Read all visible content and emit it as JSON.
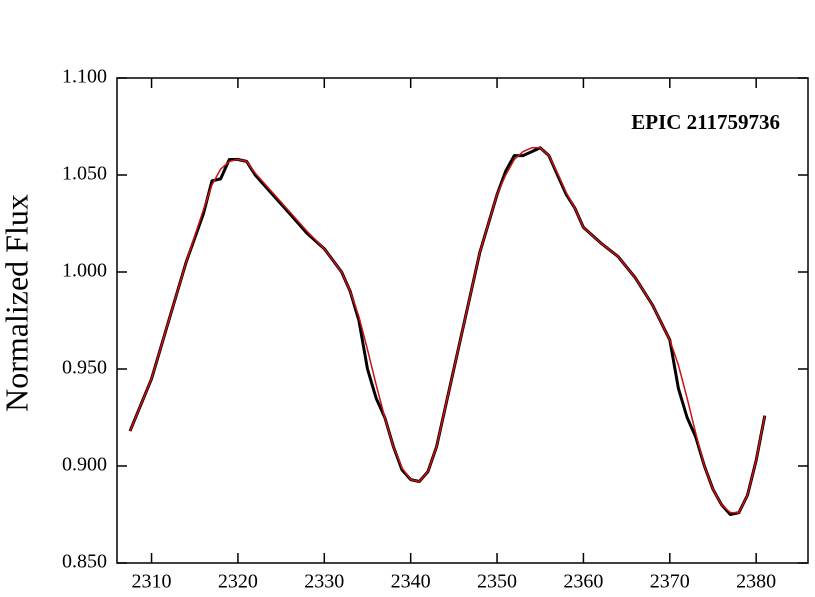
{
  "chart_data": {
    "type": "line",
    "annotation": "EPIC 211759736",
    "ylabel": "Normalized Flux",
    "xlim": [
      2306,
      2386
    ],
    "ylim": [
      0.85,
      1.1
    ],
    "xticks": [
      2310,
      2320,
      2330,
      2340,
      2350,
      2360,
      2370,
      2380
    ],
    "yticks": [
      {
        "value": 0.85,
        "label": "0.850"
      },
      {
        "value": 0.9,
        "label": "0.900"
      },
      {
        "value": 0.95,
        "label": "0.950"
      },
      {
        "value": 1.0,
        "label": "1.000"
      },
      {
        "value": 1.05,
        "label": "1.050"
      },
      {
        "value": 1.1,
        "label": "1.100"
      }
    ],
    "x": [
      2307.5,
      2310,
      2312,
      2314,
      2316,
      2317,
      2318,
      2319,
      2320,
      2321,
      2322,
      2324,
      2326,
      2328,
      2330,
      2332,
      2333,
      2334,
      2335,
      2336,
      2337,
      2338,
      2339,
      2340,
      2341,
      2342,
      2343,
      2344,
      2346,
      2348,
      2350,
      2351,
      2352,
      2353,
      2354,
      2355,
      2356,
      2357,
      2358,
      2359,
      2360,
      2362,
      2364,
      2366,
      2368,
      2370,
      2371,
      2372,
      2373,
      2374,
      2375,
      2376,
      2377,
      2378,
      2379,
      2380,
      2381
    ],
    "series": [
      {
        "color": "#000000",
        "values": [
          0.918,
          0.945,
          0.975,
          1.005,
          1.03,
          1.047,
          1.048,
          1.058,
          1.058,
          1.057,
          1.05,
          1.04,
          1.03,
          1.02,
          1.012,
          1.0,
          0.99,
          0.975,
          0.95,
          0.935,
          0.925,
          0.91,
          0.898,
          0.893,
          0.892,
          0.897,
          0.91,
          0.93,
          0.97,
          1.01,
          1.04,
          1.052,
          1.06,
          1.06,
          1.062,
          1.064,
          1.06,
          1.05,
          1.04,
          1.033,
          1.023,
          1.015,
          1.008,
          0.997,
          0.983,
          0.965,
          0.94,
          0.925,
          0.915,
          0.9,
          0.888,
          0.88,
          0.875,
          0.876,
          0.885,
          0.903,
          0.926
        ]
      },
      {
        "color": "#cc1111",
        "values": [
          0.918,
          0.945,
          0.975,
          1.005,
          1.032,
          1.045,
          1.053,
          1.057,
          1.058,
          1.057,
          1.051,
          1.041,
          1.031,
          1.021,
          1.012,
          1.0,
          0.99,
          0.977,
          0.96,
          0.942,
          0.925,
          0.91,
          0.899,
          0.893,
          0.892,
          0.897,
          0.91,
          0.93,
          0.97,
          1.01,
          1.04,
          1.05,
          1.058,
          1.062,
          1.064,
          1.064,
          1.06,
          1.051,
          1.041,
          1.033,
          1.023,
          1.015,
          1.008,
          0.997,
          0.983,
          0.965,
          0.952,
          0.935,
          0.917,
          0.9,
          0.888,
          0.88,
          0.876,
          0.876,
          0.885,
          0.903,
          0.926
        ]
      }
    ]
  }
}
